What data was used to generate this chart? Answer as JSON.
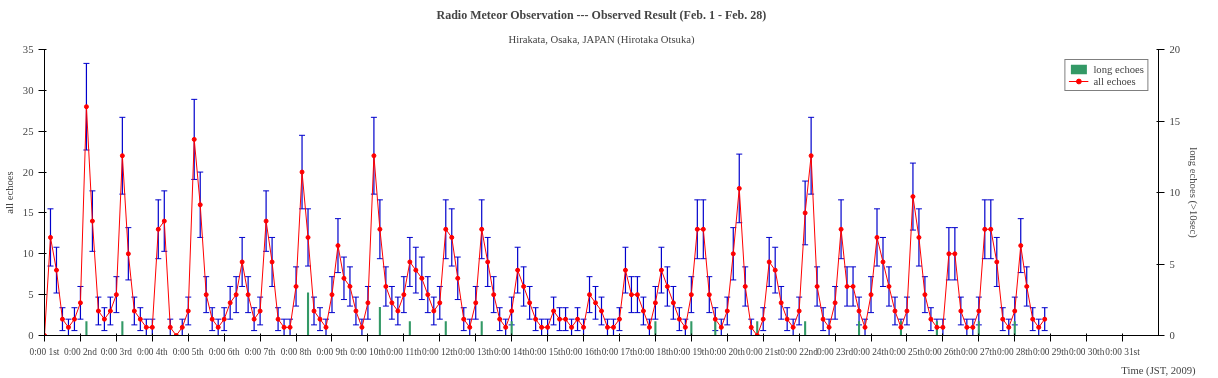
{
  "chart_data": {
    "type": "line",
    "title": "Radio Meteor Observation --- Observed Result (Feb. 1 - Feb. 28)",
    "subtitle": "Hirakata, Osaka, JAPAN (Hirotaka Otsuka)",
    "xlabel": "Time (JST, 2009)",
    "ylabel": "all echoes",
    "y2label": "long echoes (>10sec)",
    "categories": [
      "0:00 1st",
      null,
      null,
      null,
      null,
      null,
      "0:00 2nd",
      null,
      null,
      null,
      null,
      null,
      "0:00 3rd",
      null,
      null,
      null,
      null,
      null,
      "0:00 4th",
      null,
      null,
      null,
      null,
      null,
      "0:00 5th",
      null,
      null,
      null,
      null,
      null,
      "0:00 6th",
      null,
      null,
      null,
      null,
      null,
      "0:00 7th",
      null,
      null,
      null,
      null,
      null,
      "0:00 8th",
      null,
      null,
      null,
      null,
      null,
      "0:00 9th",
      null,
      null,
      null,
      null,
      null,
      "0:00 10th",
      null,
      null,
      null,
      null,
      null,
      "0:00 11th",
      null,
      null,
      null,
      null,
      null,
      "0:00 12th",
      null,
      null,
      null,
      null,
      null,
      "0:00 13th",
      null,
      null,
      null,
      null,
      null,
      "0:00 14th",
      null,
      null,
      null,
      null,
      null,
      "0:00 15th",
      null,
      null,
      null,
      null,
      null,
      "0:00 16th",
      null,
      null,
      null,
      null,
      null,
      "0:00 17th",
      null,
      null,
      null,
      null,
      null,
      "0:00 18th",
      null,
      null,
      null,
      null,
      null,
      "0:00 19th",
      null,
      null,
      null,
      null,
      null,
      "0:00 20th",
      null,
      null,
      null,
      null,
      null,
      "0:00 21st",
      null,
      null,
      null,
      null,
      null,
      "0:00 22nd",
      null,
      null,
      null,
      null,
      null,
      "0:00 23rd",
      null,
      null,
      null,
      null,
      null,
      "0:00 24th",
      null,
      null,
      null,
      null,
      null,
      "0:00 25th",
      null,
      null,
      null,
      null,
      null,
      "0:00 26th",
      null,
      null,
      null,
      null,
      null,
      "0:00 27th",
      null,
      null,
      null,
      null,
      null,
      "0:00 28th",
      null,
      null,
      null,
      null,
      null,
      "0:00 29th",
      null,
      null,
      null,
      null,
      null,
      "0:00 30th",
      null,
      null,
      null,
      null,
      null,
      "0:00 31st",
      null,
      null,
      null,
      null,
      null
    ],
    "series": [
      {
        "name": "long echoes",
        "type": "bar",
        "axis": "y2",
        "color": "#339966",
        "values": [
          0,
          0,
          0,
          0,
          0,
          0,
          0,
          1,
          0,
          0,
          0,
          0,
          0,
          1,
          0,
          0,
          0,
          0,
          0,
          0,
          0,
          0,
          0,
          0,
          0,
          0,
          0,
          0,
          0,
          0,
          0,
          0,
          0,
          0,
          0,
          0,
          0,
          0,
          0,
          0,
          0,
          0,
          0,
          0,
          3,
          0,
          0,
          0,
          0,
          0,
          0,
          0,
          0,
          0,
          0,
          0,
          2,
          0,
          0,
          0,
          0,
          1,
          0,
          0,
          0,
          0,
          0,
          1,
          0,
          0,
          0,
          0,
          0,
          1,
          0,
          0,
          0,
          0,
          1,
          0,
          0,
          0,
          0,
          0,
          0,
          0,
          0,
          0,
          0,
          0,
          0,
          0,
          0,
          0,
          0,
          0,
          0,
          0,
          0,
          0,
          0,
          0,
          1,
          0,
          0,
          0,
          0,
          0,
          1,
          0,
          0,
          0,
          1,
          0,
          0,
          0,
          0,
          0,
          0,
          1,
          0,
          0,
          0,
          0,
          0,
          0,
          0,
          1,
          0,
          0,
          0,
          0,
          0,
          0,
          0,
          0,
          1,
          0,
          0,
          0,
          0,
          0,
          0,
          1,
          0,
          0,
          0,
          0,
          0,
          1,
          0,
          0,
          0,
          0,
          0,
          0,
          1,
          0,
          0,
          0,
          0,
          0,
          1,
          0,
          0,
          0,
          0,
          0,
          null,
          null,
          null,
          null,
          null,
          null,
          null,
          null,
          null,
          null,
          null,
          null,
          null,
          null,
          null,
          null,
          null,
          null
        ]
      },
      {
        "name": "all echoes",
        "color": "#ff0000",
        "values": [
          0,
          12,
          8,
          2,
          1,
          2,
          4,
          28,
          14,
          3,
          2,
          3,
          5,
          22,
          10,
          3,
          2,
          1,
          1,
          13,
          14,
          1,
          0,
          1,
          3,
          24,
          16,
          5,
          2,
          1,
          2,
          4,
          5,
          9,
          5,
          2,
          3,
          14,
          9,
          2,
          1,
          1,
          6,
          20,
          12,
          3,
          2,
          1,
          5,
          11,
          7,
          6,
          3,
          1,
          4,
          22,
          13,
          6,
          4,
          3,
          5,
          9,
          8,
          7,
          5,
          3,
          4,
          13,
          12,
          7,
          2,
          1,
          4,
          13,
          9,
          5,
          2,
          1,
          3,
          8,
          6,
          4,
          2,
          1,
          1,
          3,
          2,
          2,
          1,
          2,
          1,
          5,
          4,
          3,
          1,
          1,
          2,
          8,
          5,
          5,
          3,
          1,
          4,
          8,
          6,
          4,
          2,
          1,
          5,
          13,
          13,
          5,
          2,
          1,
          3,
          10,
          18,
          6,
          1,
          0,
          2,
          9,
          8,
          4,
          2,
          1,
          3,
          15,
          22,
          6,
          2,
          1,
          4,
          13,
          6,
          6,
          3,
          1,
          5,
          12,
          9,
          6,
          3,
          1,
          3,
          17,
          12,
          5,
          2,
          1,
          1,
          10,
          10,
          3,
          1,
          1,
          3,
          13,
          13,
          9,
          2,
          1,
          3,
          11,
          6,
          2,
          1,
          2,
          null,
          null,
          null,
          null,
          null,
          null,
          null,
          null,
          null,
          null,
          null,
          null,
          null,
          null,
          null,
          null,
          null,
          null
        ],
        "errors": [
          null,
          3.5,
          2.8,
          1.4,
          1,
          1.4,
          2,
          5.3,
          3.7,
          1.7,
          1.4,
          1.7,
          2.2,
          4.7,
          3.2,
          1.7,
          1.4,
          1,
          1,
          3.6,
          3.7,
          1,
          null,
          1,
          1.7,
          4.9,
          4,
          2.2,
          1.4,
          1,
          1.4,
          2,
          2.2,
          3,
          2.2,
          1.4,
          1.7,
          3.7,
          3,
          1.4,
          1,
          1,
          2.4,
          4.5,
          3.5,
          1.7,
          1.4,
          1,
          2.2,
          3.3,
          2.6,
          2.4,
          1.7,
          1,
          2,
          4.7,
          3.6,
          2.4,
          2,
          1.7,
          2.2,
          3,
          2.8,
          2.6,
          2.2,
          1.7,
          2,
          3.6,
          3.5,
          2.6,
          1.4,
          1,
          2,
          3.6,
          3,
          2.2,
          1.4,
          1,
          1.7,
          2.8,
          2.4,
          2,
          1.4,
          1,
          1,
          1.7,
          1.4,
          1.4,
          1,
          1.4,
          1,
          2.2,
          2,
          1.7,
          1,
          1,
          1.4,
          2.8,
          2.2,
          2.2,
          1.7,
          1,
          2,
          2.8,
          2.4,
          2,
          1.4,
          1,
          2.2,
          3.6,
          3.6,
          2.2,
          1.4,
          1,
          1.7,
          3.2,
          4.2,
          2.4,
          1,
          null,
          1.4,
          3,
          2.8,
          2,
          1.4,
          1,
          1.7,
          3.9,
          4.7,
          2.4,
          1.4,
          1,
          2,
          3.6,
          2.4,
          2.4,
          1.7,
          1,
          2.2,
          3.5,
          3,
          2.4,
          1.7,
          1,
          1.7,
          4.1,
          3.5,
          2.2,
          1.4,
          1,
          1,
          3.2,
          3.2,
          1.7,
          1,
          1,
          1.7,
          3.6,
          3.6,
          3,
          1.4,
          1,
          1.7,
          3.3,
          2.4,
          1.4,
          1,
          1.4,
          null,
          null,
          null,
          null,
          null,
          null,
          null,
          null,
          null,
          null,
          null,
          null,
          null,
          null,
          null,
          null,
          null,
          null
        ]
      }
    ],
    "marker": "circle",
    "ylim": [
      0,
      35
    ],
    "yticks": [
      0,
      5,
      10,
      15,
      20,
      25,
      30,
      35
    ],
    "y2lim": [
      0,
      20
    ],
    "y2ticks": [
      0,
      5,
      10,
      15,
      20
    ],
    "grid": false,
    "legend": "top right"
  }
}
